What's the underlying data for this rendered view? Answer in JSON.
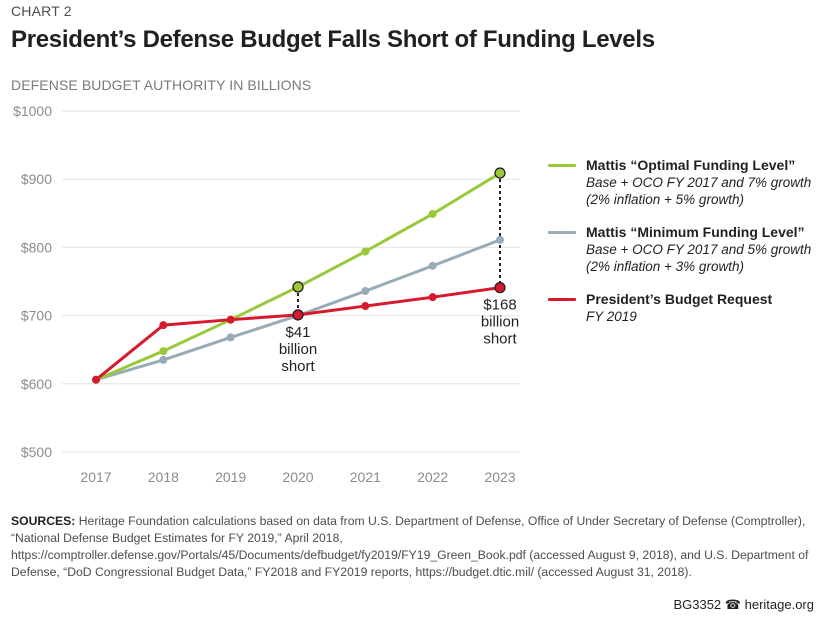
{
  "header": {
    "kicker": "CHART 2",
    "title": "President’s Defense Budget Falls Short of Funding Levels",
    "subtitle": "DEFENSE BUDGET AUTHORITY IN BILLIONS"
  },
  "chart_data": {
    "type": "line",
    "title": "President’s Defense Budget Falls Short of Funding Levels",
    "ylabel": "DEFENSE BUDGET AUTHORITY IN BILLIONS",
    "xlabel": "",
    "x": [
      2017,
      2018,
      2019,
      2020,
      2021,
      2022,
      2023
    ],
    "x_tick_labels": [
      "2017",
      "2018",
      "2019",
      "2020",
      "2021",
      "2022",
      "2023"
    ],
    "ylim": [
      500,
      1000
    ],
    "y_ticks": [
      500,
      600,
      700,
      800,
      900,
      1000
    ],
    "y_tick_labels": [
      "$500",
      "$600",
      "$700",
      "$800",
      "$900",
      "$1000"
    ],
    "grid": true,
    "legend_position": "right",
    "series": [
      {
        "key": "optimal",
        "name": "Mattis “Optimal Funding Level”",
        "description": [
          "Base + OCO FY 2017 and 7% growth",
          "(2% inflation + 5% growth)"
        ],
        "color": "#9ac83b",
        "values": [
          606,
          648,
          694,
          742,
          794,
          849,
          909
        ]
      },
      {
        "key": "minimum",
        "name": "Mattis “Minimum Funding Level”",
        "description": [
          "Base + OCO FY 2017 and 5% growth",
          "(2% inflation + 3% growth)"
        ],
        "color": "#9aabb8",
        "values": [
          606,
          635,
          668,
          700,
          736,
          773,
          811
        ]
      },
      {
        "key": "president",
        "name": "President’s Budget Request",
        "description": [
          "FY 2019"
        ],
        "color": "#d7192d",
        "values": [
          606,
          686,
          694,
          701,
          714,
          727,
          741
        ]
      }
    ],
    "annotations": [
      {
        "x": 2020,
        "from": 701,
        "to": 742,
        "label": [
          "$41",
          "billion",
          "short"
        ]
      },
      {
        "x": 2023,
        "from": 741,
        "to": 909,
        "label": [
          "$168",
          "billion",
          "short"
        ]
      }
    ]
  },
  "sources": {
    "label": "SOURCES:",
    "text": "Heritage Foundation calculations based on data from U.S. Department of Defense, Office of Under Secretary of Defense (Comptroller), “National Defense Budget Estimates for FY 2019,” April 2018, https://comptroller.defense.gov/Portals/45/Documents/defbudget/fy2019/FY19_Green_Book.pdf (accessed August 9, 2018), and U.S. Department of Defense, “DoD Congressional Budget Data,” FY2018 and FY2019 reports, https://budget.dtic.mil/ (accessed August 31, 2018)."
  },
  "footer": {
    "report_id": "BG3352",
    "icon": "liberty-bell-icon",
    "site": "heritage.org"
  }
}
